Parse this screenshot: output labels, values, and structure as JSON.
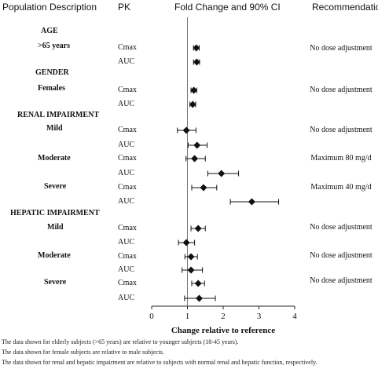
{
  "headers": {
    "population": "Population Description",
    "pk": "PK",
    "fold": "Fold Change and 90% CI",
    "recommendation": "Recommendation"
  },
  "sections": [
    {
      "title": "AGE"
    },
    {
      "title": "GENDER"
    },
    {
      "title": "RENAL IMPAIRMENT"
    },
    {
      "title": "HEPATIC IMPAIRMENT"
    }
  ],
  "groups": [
    {
      "label": ">65 years"
    },
    {
      "label": "Females"
    },
    {
      "label": "Mild"
    },
    {
      "label": "Moderate"
    },
    {
      "label": "Severe"
    },
    {
      "label": "Mild"
    },
    {
      "label": "Moderate"
    },
    {
      "label": "Severe"
    }
  ],
  "recommendations": [
    {
      "text": "No dose adjustment"
    },
    {
      "text": "No dose adjustment"
    },
    {
      "text": "No dose adjustment"
    },
    {
      "text": "Maximum 80 mg/d"
    },
    {
      "text": "Maximum 40 mg/d"
    },
    {
      "text": "No dose adjustment"
    },
    {
      "text": "No dose adjustment"
    },
    {
      "text": "No dose adjustment"
    }
  ],
  "chart_data": {
    "type": "scatter",
    "xlabel": "Change relative to reference",
    "xlim": [
      0,
      4
    ],
    "xticks": [
      0,
      1,
      2,
      3,
      4
    ],
    "reference_line": 1,
    "marker": "diamond",
    "rows": [
      {
        "pk": "Cmax",
        "estimate": 1.25,
        "lower": 1.17,
        "upper": 1.33
      },
      {
        "pk": "AUC",
        "estimate": 1.26,
        "lower": 1.17,
        "upper": 1.34
      },
      {
        "pk": "Cmax",
        "estimate": 1.18,
        "lower": 1.1,
        "upper": 1.26
      },
      {
        "pk": "AUC",
        "estimate": 1.15,
        "lower": 1.07,
        "upper": 1.23
      },
      {
        "pk": "Cmax",
        "estimate": 0.97,
        "lower": 0.72,
        "upper": 1.24
      },
      {
        "pk": "AUC",
        "estimate": 1.27,
        "lower": 1.02,
        "upper": 1.55
      },
      {
        "pk": "Cmax",
        "estimate": 1.2,
        "lower": 0.96,
        "upper": 1.5
      },
      {
        "pk": "AUC",
        "estimate": 1.95,
        "lower": 1.57,
        "upper": 2.43
      },
      {
        "pk": "Cmax",
        "estimate": 1.45,
        "lower": 1.12,
        "upper": 1.82
      },
      {
        "pk": "AUC",
        "estimate": 2.8,
        "lower": 2.2,
        "upper": 3.55
      },
      {
        "pk": "Cmax",
        "estimate": 1.3,
        "lower": 1.1,
        "upper": 1.5
      },
      {
        "pk": "AUC",
        "estimate": 0.97,
        "lower": 0.75,
        "upper": 1.2
      },
      {
        "pk": "Cmax",
        "estimate": 1.1,
        "lower": 0.93,
        "upper": 1.28
      },
      {
        "pk": "AUC",
        "estimate": 1.1,
        "lower": 0.85,
        "upper": 1.42
      },
      {
        "pk": "Cmax",
        "estimate": 1.3,
        "lower": 1.12,
        "upper": 1.48
      },
      {
        "pk": "AUC",
        "estimate": 1.33,
        "lower": 0.92,
        "upper": 1.78
      }
    ]
  },
  "footnotes": [
    "The data shown for elderly subjects (>65 years) are relative to younger subjects (18-45 years).",
    "The data shown for female subjects are relative to male subjects.",
    "The data shown for renal and hepatic impairment are relative to subjects with normal renal and hepatic function, respectively."
  ]
}
